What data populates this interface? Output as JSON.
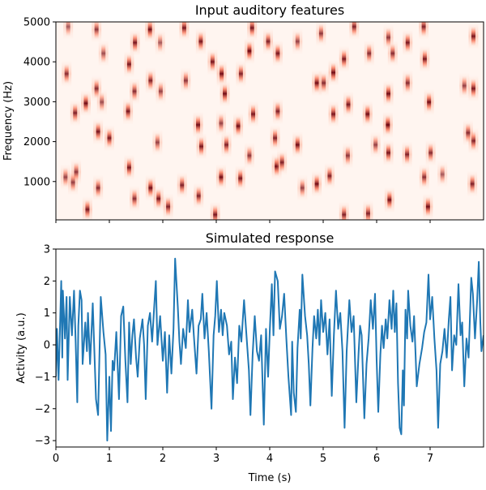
{
  "chart_data": [
    {
      "type": "heatmap",
      "title": "Input auditory features",
      "xlabel": "",
      "ylabel": "Frequency (Hz)",
      "xlim": [
        0,
        8
      ],
      "ylim": [
        40,
        5000
      ],
      "xticks": [
        0,
        1,
        2,
        3,
        4,
        5,
        6,
        7
      ],
      "xtick_labels_shown": false,
      "yticks": [
        1000,
        2000,
        3000,
        4000,
        5000
      ],
      "ytick_labels": [
        "1000",
        "2000",
        "3000",
        "4000",
        "5000"
      ],
      "colormap": "Reds",
      "colors": {
        "low": "#fff5f0",
        "mid": "#fb6a4a",
        "high": "#67000d"
      },
      "events_time_freq_intensity": [
        [
          1.76,
          4810,
          0.95
        ],
        [
          2.4,
          4850,
          0.9
        ],
        [
          2.71,
          4510,
          0.9
        ],
        [
          3.62,
          4270,
          1.0
        ],
        [
          3.67,
          4850,
          0.9
        ],
        [
          1.48,
          4480,
          0.9
        ],
        [
          1.37,
          3940,
          0.9
        ],
        [
          2.93,
          4000,
          0.9
        ],
        [
          3.1,
          3700,
          0.95
        ],
        [
          3.46,
          3700,
          0.85
        ],
        [
          0.2,
          3700,
          0.8
        ],
        [
          0.56,
          2960,
          0.95
        ],
        [
          1.35,
          2760,
          0.9
        ],
        [
          1.77,
          3530,
          0.85
        ],
        [
          3.16,
          3200,
          0.95
        ],
        [
          3.69,
          2690,
          0.9
        ],
        [
          2.66,
          2420,
          0.95
        ],
        [
          3.41,
          2390,
          0.95
        ],
        [
          0.79,
          2250,
          0.9
        ],
        [
          1.0,
          2090,
          0.9
        ],
        [
          2.72,
          1880,
          0.9
        ],
        [
          3.19,
          1920,
          0.85
        ],
        [
          1.37,
          1350,
          0.9
        ],
        [
          3.09,
          1110,
          0.95
        ],
        [
          3.45,
          1080,
          0.9
        ],
        [
          1.77,
          840,
          0.95
        ],
        [
          2.36,
          910,
          0.85
        ],
        [
          1.92,
          570,
          0.9
        ],
        [
          2.67,
          640,
          0.85
        ],
        [
          0.59,
          300,
          0.9
        ],
        [
          2.1,
          370,
          0.85
        ],
        [
          2.98,
          170,
          0.9
        ],
        [
          0.36,
          2720,
          0.85
        ],
        [
          0.79,
          840,
          0.8
        ],
        [
          0.32,
          980,
          0.75
        ],
        [
          0.23,
          4880,
          0.6
        ],
        [
          0.76,
          4810,
          0.75
        ],
        [
          0.89,
          4210,
          0.65
        ],
        [
          1.95,
          4480,
          0.6
        ],
        [
          1.47,
          3260,
          0.8
        ],
        [
          1.96,
          3260,
          0.7
        ],
        [
          2.43,
          3530,
          0.75
        ],
        [
          3.09,
          2460,
          0.7
        ],
        [
          3.62,
          1650,
          0.75
        ],
        [
          1.9,
          1980,
          0.7
        ],
        [
          1.47,
          570,
          0.8
        ],
        [
          0.76,
          3330,
          0.8
        ],
        [
          0.86,
          2990,
          0.65
        ],
        [
          0.18,
          1110,
          0.7
        ],
        [
          0.38,
          1240,
          0.75
        ],
        [
          3.97,
          4510,
          0.85
        ],
        [
          4.15,
          4210,
          0.9
        ],
        [
          4.88,
          3470,
          0.95
        ],
        [
          5.19,
          3730,
          0.95
        ],
        [
          5.39,
          4070,
          0.9
        ],
        [
          5.58,
          4880,
          0.85
        ],
        [
          6.88,
          4880,
          0.85
        ],
        [
          6.58,
          4480,
          0.9
        ],
        [
          6.9,
          4070,
          0.9
        ],
        [
          7.81,
          4640,
          0.9
        ],
        [
          7.81,
          3330,
          0.9
        ],
        [
          6.22,
          3200,
          0.95
        ],
        [
          6.98,
          2990,
          0.95
        ],
        [
          5.47,
          2930,
          0.9
        ],
        [
          5.83,
          2690,
          0.95
        ],
        [
          5.19,
          2690,
          0.9
        ],
        [
          4.15,
          2760,
          0.85
        ],
        [
          6.21,
          2420,
          1.0
        ],
        [
          4.52,
          1920,
          0.95
        ],
        [
          4.1,
          2090,
          0.85
        ],
        [
          4.13,
          1380,
          0.95
        ],
        [
          4.23,
          1480,
          0.85
        ],
        [
          4.88,
          940,
          0.95
        ],
        [
          5.12,
          1140,
          0.85
        ],
        [
          6.22,
          1720,
          0.9
        ],
        [
          6.57,
          1680,
          0.85
        ],
        [
          7.01,
          1720,
          0.8
        ],
        [
          6.24,
          540,
          0.95
        ],
        [
          6.96,
          370,
          0.95
        ],
        [
          5.39,
          170,
          0.85
        ],
        [
          5.84,
          200,
          0.85
        ],
        [
          7.81,
          2020,
          0.85
        ],
        [
          7.71,
          2220,
          0.8
        ],
        [
          7.79,
          940,
          0.85
        ],
        [
          6.89,
          1110,
          0.8
        ],
        [
          4.52,
          4510,
          0.7
        ],
        [
          4.96,
          4710,
          0.75
        ],
        [
          6.22,
          4610,
          0.75
        ],
        [
          6.3,
          4210,
          0.8
        ],
        [
          5.86,
          4210,
          0.8
        ],
        [
          6.58,
          3470,
          0.8
        ],
        [
          5.01,
          3470,
          0.8
        ],
        [
          5.46,
          1650,
          0.75
        ],
        [
          5.98,
          1920,
          0.7
        ],
        [
          7.23,
          1180,
          0.6
        ],
        [
          4.61,
          840,
          0.7
        ],
        [
          7.64,
          3400,
          0.7
        ]
      ]
    },
    {
      "type": "line",
      "title": "Simulated response",
      "xlabel": "Time (s)",
      "ylabel": "Activity (a.u.)",
      "xlim": [
        0,
        8
      ],
      "ylim": [
        -3.2,
        3.0
      ],
      "xticks": [
        0,
        1,
        2,
        3,
        4,
        5,
        6,
        7
      ],
      "xtick_labels": [
        "0",
        "1",
        "2",
        "3",
        "4",
        "5",
        "6",
        "7"
      ],
      "yticks": [
        -3,
        -2,
        -1,
        0,
        1,
        2,
        3
      ],
      "ytick_labels": [
        "−3",
        "−2",
        "−1",
        "0",
        "1",
        "2",
        "3"
      ],
      "grid": false,
      "color": "#1f77b4",
      "x": [
        0,
        0.02,
        0.05,
        0.1,
        0.12,
        0.13,
        0.17,
        0.2,
        0.22,
        0.26,
        0.3,
        0.34,
        0.37,
        0.4,
        0.42,
        0.45,
        0.48,
        0.5,
        0.55,
        0.58,
        0.6,
        0.64,
        0.69,
        0.72,
        0.75,
        0.79,
        0.84,
        0.89,
        0.93,
        0.96,
        1.0,
        1.03,
        1.06,
        1.09,
        1.13,
        1.18,
        1.22,
        1.26,
        1.3,
        1.34,
        1.37,
        1.4,
        1.43,
        1.46,
        1.5,
        1.53,
        1.57,
        1.62,
        1.65,
        1.68,
        1.72,
        1.76,
        1.8,
        1.84,
        1.87,
        1.9,
        1.95,
        2.0,
        2.04,
        2.08,
        2.12,
        2.16,
        2.2,
        2.23,
        2.28,
        2.31,
        2.34,
        2.38,
        2.43,
        2.47,
        2.5,
        2.55,
        2.58,
        2.63,
        2.67,
        2.71,
        2.74,
        2.78,
        2.82,
        2.86,
        2.91,
        2.95,
        2.98,
        3.01,
        3.05,
        3.09,
        3.12,
        3.15,
        3.2,
        3.24,
        3.28,
        3.31,
        3.35,
        3.39,
        3.43,
        3.47,
        3.52,
        3.56,
        3.61,
        3.64,
        3.68,
        3.72,
        3.76,
        3.8,
        3.84,
        3.89,
        3.93,
        3.97,
        4.0,
        4.04,
        4.07,
        4.1,
        4.15,
        4.19,
        4.23,
        4.27,
        4.31,
        4.35,
        4.4,
        4.42,
        4.45,
        4.49,
        4.52,
        4.56,
        4.58,
        4.61,
        4.66,
        4.7,
        4.73,
        4.76,
        4.8,
        4.83,
        4.87,
        4.9,
        4.93,
        4.96,
        5.0,
        5.04,
        5.08,
        5.12,
        5.16,
        5.2,
        5.24,
        5.28,
        5.32,
        5.36,
        5.4,
        5.44,
        5.49,
        5.53,
        5.57,
        5.62,
        5.66,
        5.69,
        5.72,
        5.77,
        5.81,
        5.85,
        5.89,
        5.93,
        5.97,
        6.0,
        6.03,
        6.07,
        6.1,
        6.13,
        6.17,
        6.2,
        6.24,
        6.28,
        6.31,
        6.34,
        6.37,
        6.4,
        6.43,
        6.46,
        6.49,
        6.51,
        6.54,
        6.57,
        6.59,
        6.63,
        6.67,
        6.7,
        6.73,
        6.75,
        6.8,
        6.85,
        6.89,
        6.93,
        6.97,
        7.0,
        7.04,
        7.08,
        7.12,
        7.15,
        7.19,
        7.23,
        7.27,
        7.31,
        7.35,
        7.38,
        7.41,
        7.45,
        7.49,
        7.53,
        7.57,
        7.6,
        7.64,
        7.68,
        7.72,
        7.77,
        7.8,
        7.84,
        7.88,
        7.91,
        7.94,
        7.96,
        8.0
      ],
      "y": [
        -1.0,
        0.5,
        -1.1,
        2.0,
        -0.4,
        1.7,
        0.2,
        1.5,
        -1.1,
        1.5,
        0.3,
        1.7,
        0.1,
        -1.8,
        0.6,
        1.7,
        1.4,
        -0.6,
        0.7,
        -0.2,
        1.0,
        -0.6,
        1.3,
        -0.2,
        -1.7,
        -2.2,
        1.5,
        0.4,
        -0.3,
        -3.0,
        -1.0,
        -2.7,
        -0.5,
        -0.8,
        0.4,
        -1.7,
        0.9,
        1.2,
        -0.5,
        -1.8,
        0.7,
        -0.6,
        0.3,
        0.8,
        -0.4,
        -1.0,
        0.2,
        0.8,
        0.0,
        -1.7,
        0.6,
        1.0,
        0.1,
        1.2,
        2.0,
        0.0,
        0.9,
        -0.5,
        0.4,
        -1.5,
        0.3,
        -0.9,
        0.5,
        2.7,
        1.2,
        0.1,
        -0.6,
        0.5,
        -0.1,
        1.4,
        0.4,
        1.1,
        0.3,
        -0.9,
        0.6,
        0.8,
        1.6,
        0.2,
        1.0,
        -0.2,
        -2.0,
        0.3,
        0.9,
        2.0,
        0.4,
        1.1,
        0.3,
        1.0,
        0.6,
        -0.3,
        0.1,
        -1.7,
        -0.4,
        -1.2,
        0.6,
        0.1,
        1.4,
        0.4,
        -0.8,
        -2.2,
        -0.3,
        0.9,
        -0.2,
        -0.5,
        0.3,
        -2.5,
        0.5,
        -1.0,
        0.4,
        1.9,
        0.3,
        2.3,
        2.0,
        0.5,
        0.9,
        1.6,
        0.2,
        -1.0,
        -2.2,
        0.1,
        -1.5,
        -2.1,
        -0.1,
        1.1,
        0.2,
        2.2,
        0.9,
        0.3,
        -0.6,
        -1.9,
        -0.1,
        0.9,
        0.2,
        1.1,
        0.0,
        1.4,
        0.4,
        1.0,
        -0.3,
        0.8,
        -1.6,
        0.3,
        1.7,
        0.5,
        1.0,
        -0.2,
        -2.6,
        -0.2,
        1.4,
        0.4,
        0.9,
        -1.8,
        -0.3,
        0.6,
        0.3,
        -2.3,
        -0.6,
        0.2,
        1.4,
        0.5,
        1.6,
        -0.5,
        -2.1,
        -0.3,
        0.6,
        -0.1,
        0.8,
        0.2,
        1.4,
        0.5,
        1.7,
        0.4,
        1.3,
        -1.2,
        -2.6,
        -2.8,
        -0.8,
        -1.9,
        1.1,
        0.2,
        1.7,
        0.6,
        0.1,
        0.9,
        -0.4,
        -1.3,
        -0.6,
        -0.1,
        0.4,
        0.7,
        2.2,
        0.8,
        1.5,
        0.2,
        -0.8,
        -2.6,
        -0.6,
        -0.2,
        0.5,
        -0.4,
        0.8,
        1.5,
        -0.8,
        0.3,
        0.0,
        1.9,
        0.3,
        0.7,
        -1.3,
        0.2,
        -0.4,
        2.1,
        1.6,
        0.2,
        1.4,
        2.6,
        0.7,
        -0.2,
        0.3
      ]
    }
  ]
}
